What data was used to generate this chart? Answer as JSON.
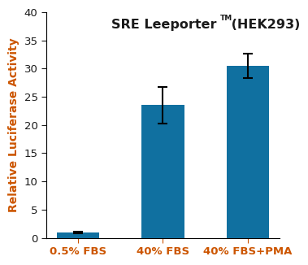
{
  "categories": [
    "0.5% FBS",
    "40% FBS",
    "40% FBS+PMA"
  ],
  "values": [
    1.0,
    23.5,
    30.5
  ],
  "errors": [
    0.15,
    3.2,
    2.2
  ],
  "bar_color": "#1070a0",
  "title_main": "SRE Leeporter",
  "title_super": "TM",
  "title_end": " (HEK293)",
  "ylabel": "Relative Luciferase Activity",
  "ylim": [
    0,
    40
  ],
  "yticks": [
    0,
    5,
    10,
    15,
    20,
    25,
    30,
    35,
    40
  ],
  "bar_width": 0.5,
  "text_color": "#1a1a1a",
  "label_color": "#cc5500",
  "background_color": "#ffffff",
  "title_fontsize": 11.5,
  "ylabel_fontsize": 10,
  "tick_fontsize": 9.5
}
